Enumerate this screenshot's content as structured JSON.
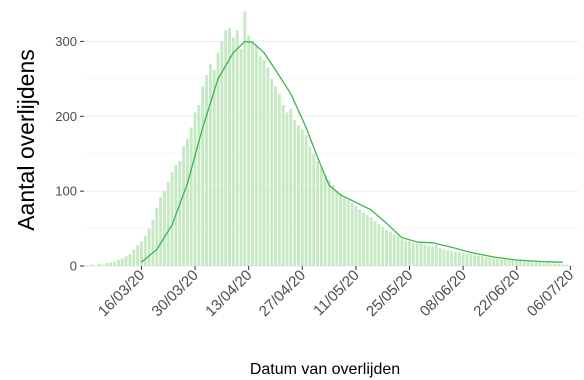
{
  "chart_data": {
    "type": "bar",
    "title": "",
    "xlabel": "Datum van overlijden",
    "ylabel": "Aantal overlijdens",
    "x_start": "2020-03-01",
    "x_end": "2020-07-08",
    "xlim": [
      "2020-03-01",
      "2020-07-08"
    ],
    "ylim": [
      0,
      350
    ],
    "y_ticks": [
      0,
      100,
      200,
      300
    ],
    "y_tick_labels": [
      "0",
      "100",
      "200",
      "300"
    ],
    "x_tick_dates": [
      "2020-03-16",
      "2020-03-30",
      "2020-04-13",
      "2020-04-27",
      "2020-05-11",
      "2020-05-25",
      "2020-06-08",
      "2020-06-22",
      "2020-07-06"
    ],
    "x_tick_labels": [
      "16/03/20",
      "30/03/20",
      "13/04/20",
      "27/04/20",
      "11/05/20",
      "25/05/20",
      "08/06/20",
      "22/06/20",
      "06/07/20"
    ],
    "grid": true,
    "colors": {
      "bar": "#c6e9c4",
      "line": "#3ab54a",
      "grid": "#ebebeb",
      "text": "#4d4d4d",
      "axis_title": "#000000"
    },
    "bars": [
      {
        "date": "2020-03-01",
        "value": 1
      },
      {
        "date": "2020-03-02",
        "value": 1
      },
      {
        "date": "2020-03-03",
        "value": 2
      },
      {
        "date": "2020-03-04",
        "value": 1
      },
      {
        "date": "2020-03-05",
        "value": 3
      },
      {
        "date": "2020-03-06",
        "value": 2
      },
      {
        "date": "2020-03-07",
        "value": 4
      },
      {
        "date": "2020-03-08",
        "value": 5
      },
      {
        "date": "2020-03-09",
        "value": 6
      },
      {
        "date": "2020-03-10",
        "value": 8
      },
      {
        "date": "2020-03-11",
        "value": 10
      },
      {
        "date": "2020-03-12",
        "value": 13
      },
      {
        "date": "2020-03-13",
        "value": 16
      },
      {
        "date": "2020-03-14",
        "value": 22
      },
      {
        "date": "2020-03-15",
        "value": 28
      },
      {
        "date": "2020-03-16",
        "value": 33
      },
      {
        "date": "2020-03-17",
        "value": 40
      },
      {
        "date": "2020-03-18",
        "value": 50
      },
      {
        "date": "2020-03-19",
        "value": 62
      },
      {
        "date": "2020-03-20",
        "value": 78
      },
      {
        "date": "2020-03-21",
        "value": 92
      },
      {
        "date": "2020-03-22",
        "value": 100
      },
      {
        "date": "2020-03-23",
        "value": 112
      },
      {
        "date": "2020-03-24",
        "value": 125
      },
      {
        "date": "2020-03-25",
        "value": 135
      },
      {
        "date": "2020-03-26",
        "value": 140
      },
      {
        "date": "2020-03-27",
        "value": 160
      },
      {
        "date": "2020-03-28",
        "value": 170
      },
      {
        "date": "2020-03-29",
        "value": 185
      },
      {
        "date": "2020-03-30",
        "value": 205
      },
      {
        "date": "2020-03-31",
        "value": 215
      },
      {
        "date": "2020-04-01",
        "value": 240
      },
      {
        "date": "2020-04-02",
        "value": 255
      },
      {
        "date": "2020-04-03",
        "value": 270
      },
      {
        "date": "2020-04-04",
        "value": 262
      },
      {
        "date": "2020-04-05",
        "value": 285
      },
      {
        "date": "2020-04-06",
        "value": 300
      },
      {
        "date": "2020-04-07",
        "value": 315
      },
      {
        "date": "2020-04-08",
        "value": 318
      },
      {
        "date": "2020-04-09",
        "value": 305
      },
      {
        "date": "2020-04-10",
        "value": 315
      },
      {
        "date": "2020-04-11",
        "value": 290
      },
      {
        "date": "2020-04-12",
        "value": 340
      },
      {
        "date": "2020-04-13",
        "value": 308
      },
      {
        "date": "2020-04-14",
        "value": 300
      },
      {
        "date": "2020-04-15",
        "value": 295
      },
      {
        "date": "2020-04-16",
        "value": 280
      },
      {
        "date": "2020-04-17",
        "value": 275
      },
      {
        "date": "2020-04-18",
        "value": 265
      },
      {
        "date": "2020-04-19",
        "value": 250
      },
      {
        "date": "2020-04-20",
        "value": 240
      },
      {
        "date": "2020-04-21",
        "value": 230
      },
      {
        "date": "2020-04-22",
        "value": 215
      },
      {
        "date": "2020-04-23",
        "value": 205
      },
      {
        "date": "2020-04-24",
        "value": 210
      },
      {
        "date": "2020-04-25",
        "value": 195
      },
      {
        "date": "2020-04-26",
        "value": 188
      },
      {
        "date": "2020-04-27",
        "value": 182
      },
      {
        "date": "2020-04-28",
        "value": 175
      },
      {
        "date": "2020-04-29",
        "value": 160
      },
      {
        "date": "2020-04-30",
        "value": 150
      },
      {
        "date": "2020-05-01",
        "value": 140
      },
      {
        "date": "2020-05-02",
        "value": 132
      },
      {
        "date": "2020-05-03",
        "value": 120
      },
      {
        "date": "2020-05-04",
        "value": 115
      },
      {
        "date": "2020-05-05",
        "value": 108
      },
      {
        "date": "2020-05-06",
        "value": 100
      },
      {
        "date": "2020-05-07",
        "value": 96
      },
      {
        "date": "2020-05-08",
        "value": 92
      },
      {
        "date": "2020-05-09",
        "value": 88
      },
      {
        "date": "2020-05-10",
        "value": 84
      },
      {
        "date": "2020-05-11",
        "value": 80
      },
      {
        "date": "2020-05-12",
        "value": 76
      },
      {
        "date": "2020-05-13",
        "value": 72
      },
      {
        "date": "2020-05-14",
        "value": 68
      },
      {
        "date": "2020-05-15",
        "value": 65
      },
      {
        "date": "2020-05-16",
        "value": 60
      },
      {
        "date": "2020-05-17",
        "value": 56
      },
      {
        "date": "2020-05-18",
        "value": 52
      },
      {
        "date": "2020-05-19",
        "value": 48
      },
      {
        "date": "2020-05-20",
        "value": 45
      },
      {
        "date": "2020-05-21",
        "value": 42
      },
      {
        "date": "2020-05-22",
        "value": 40
      },
      {
        "date": "2020-05-23",
        "value": 36
      },
      {
        "date": "2020-05-24",
        "value": 34
      },
      {
        "date": "2020-05-25",
        "value": 33
      },
      {
        "date": "2020-05-26",
        "value": 31
      },
      {
        "date": "2020-05-27",
        "value": 30
      },
      {
        "date": "2020-05-28",
        "value": 32
      },
      {
        "date": "2020-05-29",
        "value": 29
      },
      {
        "date": "2020-05-30",
        "value": 27
      },
      {
        "date": "2020-05-31",
        "value": 26
      },
      {
        "date": "2020-06-01",
        "value": 28
      },
      {
        "date": "2020-06-02",
        "value": 24
      },
      {
        "date": "2020-06-03",
        "value": 22
      },
      {
        "date": "2020-06-04",
        "value": 21
      },
      {
        "date": "2020-06-05",
        "value": 20
      },
      {
        "date": "2020-06-06",
        "value": 19
      },
      {
        "date": "2020-06-07",
        "value": 18
      },
      {
        "date": "2020-06-08",
        "value": 17
      },
      {
        "date": "2020-06-09",
        "value": 16
      },
      {
        "date": "2020-06-10",
        "value": 16
      },
      {
        "date": "2020-06-11",
        "value": 15
      },
      {
        "date": "2020-06-12",
        "value": 14
      },
      {
        "date": "2020-06-13",
        "value": 13
      },
      {
        "date": "2020-06-14",
        "value": 12
      },
      {
        "date": "2020-06-15",
        "value": 11
      },
      {
        "date": "2020-06-16",
        "value": 11
      },
      {
        "date": "2020-06-17",
        "value": 10
      },
      {
        "date": "2020-06-18",
        "value": 9
      },
      {
        "date": "2020-06-19",
        "value": 9
      },
      {
        "date": "2020-06-20",
        "value": 8
      },
      {
        "date": "2020-06-21",
        "value": 8
      },
      {
        "date": "2020-06-22",
        "value": 7
      },
      {
        "date": "2020-06-23",
        "value": 7
      },
      {
        "date": "2020-06-24",
        "value": 6
      },
      {
        "date": "2020-06-25",
        "value": 6
      },
      {
        "date": "2020-06-26",
        "value": 5
      },
      {
        "date": "2020-06-27",
        "value": 5
      },
      {
        "date": "2020-06-28",
        "value": 5
      },
      {
        "date": "2020-06-29",
        "value": 4
      },
      {
        "date": "2020-06-30",
        "value": 4
      },
      {
        "date": "2020-07-01",
        "value": 3
      },
      {
        "date": "2020-07-02",
        "value": 3
      },
      {
        "date": "2020-07-03",
        "value": 3
      },
      {
        "date": "2020-07-04",
        "value": 2
      },
      {
        "date": "2020-07-05",
        "value": 2
      },
      {
        "date": "2020-07-06",
        "value": 1
      }
    ],
    "trend": [
      {
        "date": "2020-03-16",
        "value": 5
      },
      {
        "date": "2020-03-20",
        "value": 22
      },
      {
        "date": "2020-03-24",
        "value": 55
      },
      {
        "date": "2020-03-28",
        "value": 110
      },
      {
        "date": "2020-04-01",
        "value": 185
      },
      {
        "date": "2020-04-05",
        "value": 250
      },
      {
        "date": "2020-04-09",
        "value": 285
      },
      {
        "date": "2020-04-12",
        "value": 300
      },
      {
        "date": "2020-04-14",
        "value": 299
      },
      {
        "date": "2020-04-17",
        "value": 285
      },
      {
        "date": "2020-04-20",
        "value": 262
      },
      {
        "date": "2020-04-24",
        "value": 230
      },
      {
        "date": "2020-04-28",
        "value": 185
      },
      {
        "date": "2020-05-01",
        "value": 145
      },
      {
        "date": "2020-05-04",
        "value": 108
      },
      {
        "date": "2020-05-07",
        "value": 95
      },
      {
        "date": "2020-05-11",
        "value": 85
      },
      {
        "date": "2020-05-15",
        "value": 75
      },
      {
        "date": "2020-05-19",
        "value": 57
      },
      {
        "date": "2020-05-23",
        "value": 38
      },
      {
        "date": "2020-05-27",
        "value": 32
      },
      {
        "date": "2020-05-31",
        "value": 31
      },
      {
        "date": "2020-06-05",
        "value": 25
      },
      {
        "date": "2020-06-10",
        "value": 18
      },
      {
        "date": "2020-06-16",
        "value": 12
      },
      {
        "date": "2020-06-22",
        "value": 8
      },
      {
        "date": "2020-06-28",
        "value": 6
      },
      {
        "date": "2020-07-04",
        "value": 5
      }
    ]
  }
}
